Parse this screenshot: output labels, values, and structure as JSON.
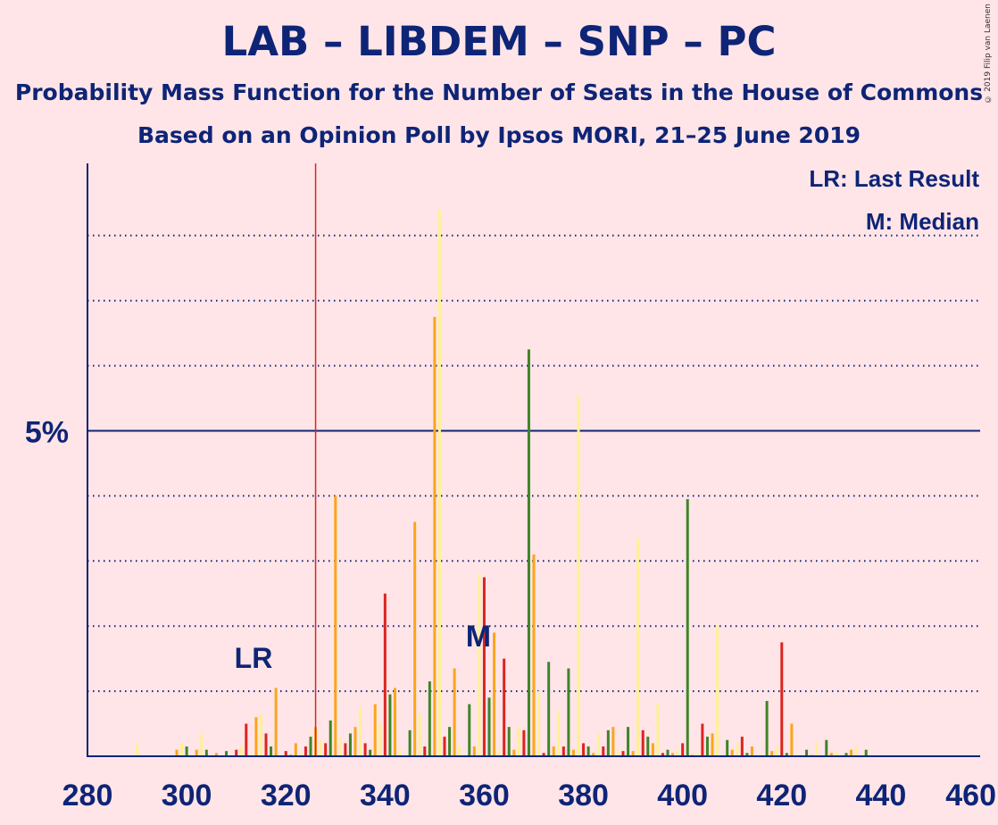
{
  "title": "LAB – LIBDEM – SNP – PC",
  "subtitle": "Probability Mass Function for the Number of Seats in the House of Commons",
  "subtitle2": "Based on an Opinion Poll by Ipsos MORI, 21–25 June 2019",
  "copyright": "© 2019 Filip van Laenen",
  "legend": {
    "lr": "LR: Last Result",
    "m": "M: Median"
  },
  "colors": {
    "background": "#FFE5E8",
    "title": "#0E2476",
    "lab": "#DC241F",
    "libdem": "#FAA61A",
    "snp": "#FFF095",
    "pc": "#3F8428",
    "lr_line": "#DC241F"
  },
  "chart_data": {
    "type": "bar",
    "x_ticks": [
      280,
      300,
      320,
      340,
      360,
      380,
      400,
      420,
      440,
      460
    ],
    "xlim": [
      280,
      460
    ],
    "ylim": [
      0,
      9
    ],
    "y_tick_labels": [
      {
        "value": 5,
        "label": "5%"
      }
    ],
    "gridlines": [
      1,
      2,
      3,
      4,
      6,
      7,
      8
    ],
    "last_result": {
      "value": 326,
      "label": "LR"
    },
    "median": {
      "value": 359,
      "label": "M"
    },
    "series": [
      {
        "name": "LAB",
        "x": [
          310,
          312,
          316,
          320,
          324,
          328,
          332,
          336,
          340,
          348,
          352,
          360,
          364,
          368,
          372,
          376,
          380,
          384,
          388,
          392,
          396,
          400,
          404,
          412,
          420
        ],
        "values": [
          0.1,
          0.5,
          0.35,
          0.08,
          0.15,
          0.2,
          0.2,
          0.2,
          2.5,
          0.15,
          0.3,
          2.75,
          1.5,
          0.4,
          0.05,
          0.15,
          0.2,
          0.15,
          0.08,
          0.4,
          0.05,
          0.2,
          0.5,
          0.3,
          1.75
        ]
      },
      {
        "name": "LIBDEM",
        "x": [
          298,
          302,
          306,
          314,
          318,
          322,
          326,
          330,
          334,
          338,
          342,
          346,
          350,
          354,
          358,
          362,
          366,
          370,
          374,
          378,
          382,
          386,
          390,
          394,
          398,
          402,
          406,
          410,
          414,
          418,
          422,
          426,
          430,
          434
        ],
        "values": [
          0.1,
          0.1,
          0.05,
          0.6,
          1.05,
          0.2,
          0.45,
          4.0,
          0.45,
          0.8,
          1.05,
          3.6,
          6.75,
          1.35,
          0.15,
          1.9,
          0.1,
          3.1,
          0.15,
          0.1,
          0.05,
          0.45,
          0.08,
          0.2,
          0.05,
          0.02,
          0.35,
          0.1,
          0.15,
          0.08,
          0.5,
          0.02,
          0.05,
          0.1
        ]
      },
      {
        "name": "SNP",
        "x": [
          290,
          299,
          303,
          311,
          315,
          323,
          327,
          331,
          335,
          339,
          343,
          347,
          351,
          355,
          359,
          363,
          367,
          371,
          375,
          379,
          383,
          387,
          391,
          395,
          399,
          403,
          407,
          411,
          415,
          419,
          423,
          427,
          431,
          435
        ],
        "values": [
          0.2,
          0.2,
          0.35,
          0.15,
          0.65,
          0.05,
          0.25,
          0.3,
          0.75,
          0.5,
          0.1,
          0.65,
          8.4,
          0.15,
          2.8,
          0.1,
          0.45,
          1.0,
          0.7,
          5.55,
          0.35,
          0.1,
          3.35,
          0.8,
          0.1,
          0.05,
          2.0,
          0.2,
          0.02,
          0.15,
          0.02,
          0.2,
          0.08,
          0.15
        ]
      },
      {
        "name": "PC",
        "x": [
          300,
          304,
          308,
          317,
          321,
          325,
          329,
          333,
          337,
          341,
          345,
          349,
          353,
          357,
          361,
          365,
          369,
          373,
          377,
          381,
          385,
          389,
          393,
          397,
          401,
          405,
          409,
          413,
          417,
          421,
          425,
          429,
          433,
          437
        ],
        "values": [
          0.15,
          0.1,
          0.08,
          0.15,
          0.02,
          0.3,
          0.55,
          0.35,
          0.1,
          0.95,
          0.4,
          1.15,
          0.45,
          0.8,
          0.9,
          0.45,
          6.25,
          1.45,
          1.35,
          0.15,
          0.4,
          0.45,
          0.3,
          0.1,
          3.95,
          0.3,
          0.25,
          0.05,
          0.85,
          0.05,
          0.1,
          0.25,
          0.05,
          0.1
        ]
      }
    ]
  }
}
